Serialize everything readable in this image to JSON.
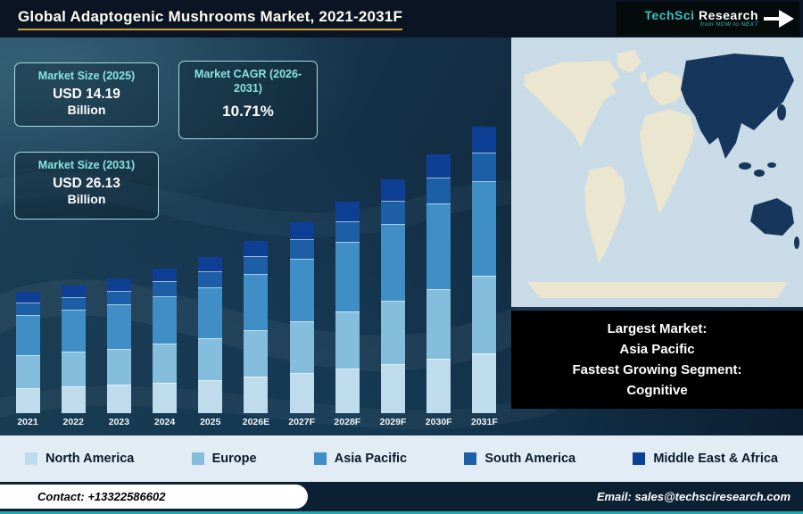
{
  "header": {
    "title": "Global Adaptogenic Mushrooms Market, 2021-2031F",
    "logo": {
      "brand": "TechSci",
      "brand2": "Research",
      "tagline": "from NOW to NEXT"
    }
  },
  "stats": [
    {
      "label": "Market Size (2025)",
      "value": "USD 14.19",
      "unit": "Billion"
    },
    {
      "label": "Market CAGR (2026-2031)",
      "value": "10.71%",
      "unit": ""
    },
    {
      "label": "Market Size (2031)",
      "value": "USD 26.13",
      "unit": "Billion"
    }
  ],
  "map": {
    "ocean_color": "#c9dbe7",
    "land_color": "#eae6cf",
    "highlight_color": "#16365c",
    "highlighted_region": "Asia Pacific"
  },
  "callout": {
    "lines": [
      "Largest Market:",
      "Asia Pacific",
      "Fastest Growing Segment:",
      "Cognitive"
    ]
  },
  "chart_data": {
    "type": "bar",
    "stacked": true,
    "unit": "USD Billion",
    "title": "Global Adaptogenic Mushrooms Market, 2021-2031F",
    "categories": [
      "2021",
      "2022",
      "2023",
      "2024",
      "2025",
      "2026E",
      "2027F",
      "2028F",
      "2029F",
      "2030F",
      "2031F"
    ],
    "series": [
      {
        "name": "North America",
        "color": "#bfdcec",
        "values": [
          2.32,
          2.44,
          2.58,
          2.77,
          2.98,
          3.3,
          3.65,
          4.04,
          4.48,
          4.96,
          5.49
        ]
      },
      {
        "name": "Europe",
        "color": "#85bedd",
        "values": [
          2.98,
          3.14,
          3.32,
          3.56,
          3.83,
          4.24,
          4.7,
          5.2,
          5.75,
          6.37,
          7.06
        ]
      },
      {
        "name": "Asia Pacific",
        "color": "#3f8ec5",
        "values": [
          3.65,
          3.83,
          4.06,
          4.36,
          4.68,
          5.18,
          5.74,
          6.35,
          7.03,
          7.79,
          8.62
        ]
      },
      {
        "name": "South America",
        "color": "#1d5fa6",
        "values": [
          1.11,
          1.16,
          1.23,
          1.32,
          1.42,
          1.57,
          1.74,
          1.93,
          2.13,
          2.36,
          2.61
        ]
      },
      {
        "name": "Middle East & Africa",
        "color": "#0d4094",
        "values": [
          0.99,
          1.05,
          1.11,
          1.19,
          1.28,
          1.42,
          1.56,
          1.73,
          1.92,
          2.12,
          2.35
        ]
      }
    ],
    "totals": [
      11.05,
      11.62,
      12.3,
      13.2,
      14.19,
      15.71,
      17.39,
      19.25,
      21.31,
      23.6,
      26.13
    ],
    "annotations": {
      "market_size_2025": "USD 14.19 Billion",
      "market_size_2031": "USD 26.13 Billion",
      "cagr_2026_2031": "10.71%"
    },
    "ylim": [
      0,
      28
    ],
    "gridlines": false,
    "legend_position": "bottom"
  },
  "footer": {
    "contact": "Contact: +13322586602",
    "email": "Email: sales@techsciresearch.com"
  }
}
